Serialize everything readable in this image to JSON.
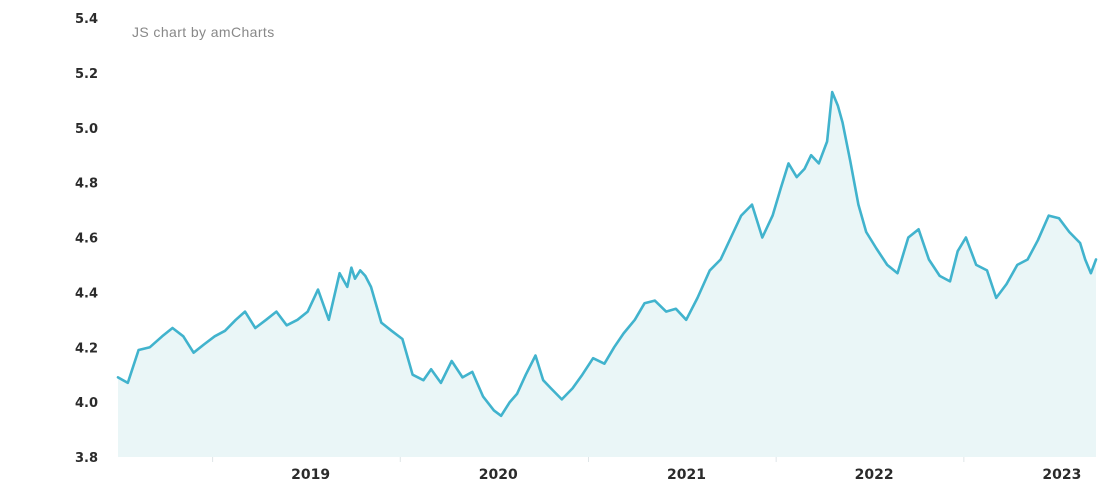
{
  "chart_data": {
    "type": "area",
    "credit": "JS chart by amCharts",
    "title": "",
    "xlabel": "",
    "ylabel": "",
    "ylim": [
      3.8,
      5.4
    ],
    "y_ticks": [
      "3.8",
      "4.0",
      "4.2",
      "4.4",
      "4.6",
      "4.8",
      "5.0",
      "5.2",
      "5.4"
    ],
    "xlim": [
      "2018-07-01",
      "2023-09-15"
    ],
    "x_ticks": [
      {
        "date": "2019-01-01",
        "label": "2019"
      },
      {
        "date": "2020-01-01",
        "label": "2020"
      },
      {
        "date": "2021-01-01",
        "label": "2021"
      },
      {
        "date": "2022-01-01",
        "label": "2022"
      },
      {
        "date": "2023-01-01",
        "label": "2023"
      }
    ],
    "grid": false,
    "legend": "none",
    "colors": {
      "line": "#41b3cd",
      "fill": "#eaf6f7"
    },
    "series": [
      {
        "x": [
          "2018-07-01",
          "2018-07-20",
          "2018-08-10",
          "2018-09-01",
          "2018-09-25",
          "2018-10-15",
          "2018-11-05",
          "2018-11-25",
          "2018-12-15",
          "2019-01-05",
          "2019-01-25",
          "2019-02-15",
          "2019-03-05",
          "2019-03-25",
          "2019-04-15",
          "2019-05-05",
          "2019-05-25",
          "2019-06-15",
          "2019-07-05",
          "2019-07-25",
          "2019-08-15",
          "2019-09-05",
          "2019-09-20",
          "2019-09-28",
          "2019-10-05",
          "2019-10-15",
          "2019-10-25",
          "2019-11-05",
          "2019-11-25",
          "2019-12-15",
          "2020-01-05",
          "2020-01-25",
          "2020-02-15",
          "2020-03-01",
          "2020-03-20",
          "2020-04-10",
          "2020-05-01",
          "2020-05-20",
          "2020-06-10",
          "2020-07-01",
          "2020-07-15",
          "2020-08-01",
          "2020-08-15",
          "2020-09-01",
          "2020-09-20",
          "2020-10-05",
          "2020-10-20",
          "2020-11-10",
          "2020-12-01",
          "2020-12-20",
          "2021-01-10",
          "2021-02-01",
          "2021-02-20",
          "2021-03-10",
          "2021-04-01",
          "2021-04-20",
          "2021-05-10",
          "2021-06-01",
          "2021-06-20",
          "2021-07-10",
          "2021-08-01",
          "2021-08-25",
          "2021-09-15",
          "2021-10-05",
          "2021-10-25",
          "2021-11-15",
          "2021-12-05",
          "2021-12-25",
          "2022-01-10",
          "2022-01-25",
          "2022-02-10",
          "2022-02-25",
          "2022-03-10",
          "2022-03-25",
          "2022-04-10",
          "2022-04-20",
          "2022-05-01",
          "2022-05-10",
          "2022-05-25",
          "2022-06-10",
          "2022-06-25",
          "2022-07-15",
          "2022-08-05",
          "2022-08-25",
          "2022-09-15",
          "2022-10-05",
          "2022-10-25",
          "2022-11-15",
          "2022-12-05",
          "2022-12-20",
          "2023-01-05",
          "2023-01-25",
          "2023-02-15",
          "2023-03-05",
          "2023-03-25",
          "2023-04-15",
          "2023-05-05",
          "2023-05-25",
          "2023-06-15",
          "2023-07-05",
          "2023-07-25",
          "2023-08-15",
          "2023-08-25",
          "2023-09-05",
          "2023-09-15"
        ],
        "y": [
          4.09,
          4.07,
          4.19,
          4.2,
          4.24,
          4.27,
          4.24,
          4.18,
          4.21,
          4.24,
          4.26,
          4.3,
          4.33,
          4.27,
          4.3,
          4.33,
          4.28,
          4.3,
          4.33,
          4.41,
          4.3,
          4.47,
          4.42,
          4.49,
          4.45,
          4.48,
          4.46,
          4.42,
          4.29,
          4.26,
          4.23,
          4.1,
          4.08,
          4.12,
          4.07,
          4.15,
          4.09,
          4.11,
          4.02,
          3.97,
          3.95,
          4.0,
          4.03,
          4.1,
          4.17,
          4.08,
          4.05,
          4.01,
          4.05,
          4.1,
          4.16,
          4.14,
          4.2,
          4.25,
          4.3,
          4.36,
          4.37,
          4.33,
          4.34,
          4.3,
          4.38,
          4.48,
          4.52,
          4.6,
          4.68,
          4.72,
          4.6,
          4.68,
          4.78,
          4.87,
          4.82,
          4.85,
          4.9,
          4.87,
          4.95,
          5.13,
          5.08,
          5.02,
          4.88,
          4.72,
          4.62,
          4.56,
          4.5,
          4.47,
          4.6,
          4.63,
          4.52,
          4.46,
          4.44,
          4.55,
          4.6,
          4.5,
          4.48,
          4.38,
          4.43,
          4.5,
          4.52,
          4.59,
          4.68,
          4.67,
          4.62,
          4.58,
          4.52,
          4.47,
          4.52
        ]
      }
    ]
  }
}
